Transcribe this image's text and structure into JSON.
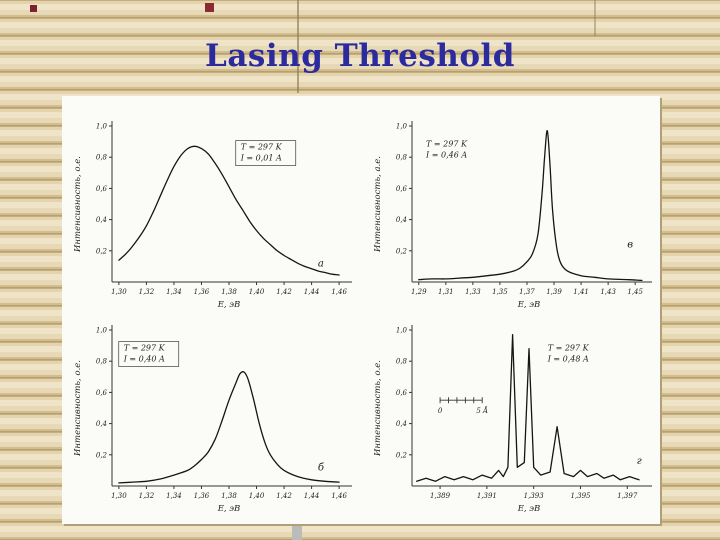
{
  "slide": {
    "title": "Lasing Threshold",
    "title_color": "#2b2b9e"
  },
  "chart_data": [
    {
      "id": "a",
      "type": "line",
      "smooth": true,
      "corner_label": "а",
      "corner_pos": [
        0.88,
        0.9
      ],
      "annotation": [
        "T = 297 K",
        "I = 0,01 A"
      ],
      "annotation_boxed": true,
      "ann_pos": [
        0.55,
        0.1
      ],
      "xlabel": "Е, эВ",
      "ylabel": "Интенсивность, о.е.",
      "xlim": [
        1.295,
        1.465
      ],
      "ylim": [
        0,
        1.0
      ],
      "xticks": {
        "values": [
          1.3,
          1.32,
          1.34,
          1.36,
          1.38,
          1.4,
          1.42,
          1.44,
          1.46
        ],
        "labels": [
          "1,30",
          "1,32",
          "1,34",
          "1,36",
          "1,38",
          "1,40",
          "1,42",
          "1,44",
          "1,46"
        ]
      },
      "yticks": {
        "values": [
          0.2,
          0.4,
          0.6,
          0.8,
          1.0
        ],
        "labels": [
          "0,2",
          "0,4",
          "0,6",
          "0,8",
          "1,0"
        ]
      },
      "points": [
        [
          1.3,
          0.14
        ],
        [
          1.305,
          0.18
        ],
        [
          1.31,
          0.23
        ],
        [
          1.315,
          0.29
        ],
        [
          1.32,
          0.36
        ],
        [
          1.325,
          0.45
        ],
        [
          1.33,
          0.55
        ],
        [
          1.335,
          0.65
        ],
        [
          1.34,
          0.74
        ],
        [
          1.345,
          0.81
        ],
        [
          1.35,
          0.855
        ],
        [
          1.355,
          0.87
        ],
        [
          1.36,
          0.855
        ],
        [
          1.365,
          0.82
        ],
        [
          1.37,
          0.76
        ],
        [
          1.375,
          0.69
        ],
        [
          1.38,
          0.61
        ],
        [
          1.385,
          0.53
        ],
        [
          1.39,
          0.46
        ],
        [
          1.395,
          0.39
        ],
        [
          1.4,
          0.33
        ],
        [
          1.405,
          0.28
        ],
        [
          1.41,
          0.24
        ],
        [
          1.415,
          0.2
        ],
        [
          1.42,
          0.17
        ],
        [
          1.425,
          0.145
        ],
        [
          1.43,
          0.12
        ],
        [
          1.435,
          0.1
        ],
        [
          1.44,
          0.085
        ],
        [
          1.445,
          0.07
        ],
        [
          1.45,
          0.06
        ],
        [
          1.455,
          0.05
        ],
        [
          1.46,
          0.045
        ]
      ]
    },
    {
      "id": "v",
      "type": "line",
      "smooth": true,
      "corner_label": "в",
      "corner_pos": [
        0.92,
        0.78
      ],
      "annotation": [
        "T = 297 K",
        "I = 0,46 A"
      ],
      "annotation_boxed": false,
      "ann_pos": [
        0.06,
        0.08
      ],
      "xlabel": "Е, эВ",
      "ylabel": "Интенсивность, а.е.",
      "xlim": [
        1.285,
        1.458
      ],
      "ylim": [
        0,
        1.0
      ],
      "xticks": {
        "values": [
          1.29,
          1.31,
          1.33,
          1.35,
          1.37,
          1.39,
          1.41,
          1.43,
          1.45
        ],
        "labels": [
          "1,29",
          "1,31",
          "1,33",
          "1,35",
          "1,37",
          "1,39",
          "1,41",
          "1,43",
          "1,45"
        ]
      },
      "yticks": {
        "values": [
          0.2,
          0.4,
          0.6,
          0.8,
          1.0
        ],
        "labels": [
          "0,2",
          "0,4",
          "0,6",
          "0,8",
          "1,0"
        ]
      },
      "points": [
        [
          1.29,
          0.015
        ],
        [
          1.3,
          0.02
        ],
        [
          1.31,
          0.02
        ],
        [
          1.32,
          0.025
        ],
        [
          1.33,
          0.03
        ],
        [
          1.34,
          0.04
        ],
        [
          1.35,
          0.05
        ],
        [
          1.36,
          0.07
        ],
        [
          1.365,
          0.09
        ],
        [
          1.37,
          0.13
        ],
        [
          1.374,
          0.18
        ],
        [
          1.378,
          0.3
        ],
        [
          1.381,
          0.55
        ],
        [
          1.383,
          0.8
        ],
        [
          1.385,
          0.97
        ],
        [
          1.387,
          0.75
        ],
        [
          1.389,
          0.45
        ],
        [
          1.392,
          0.22
        ],
        [
          1.395,
          0.12
        ],
        [
          1.4,
          0.07
        ],
        [
          1.41,
          0.04
        ],
        [
          1.42,
          0.03
        ],
        [
          1.43,
          0.02
        ],
        [
          1.445,
          0.015
        ],
        [
          1.455,
          0.01
        ]
      ]
    },
    {
      "id": "b",
      "type": "line",
      "smooth": true,
      "corner_label": "б",
      "corner_pos": [
        0.88,
        0.9
      ],
      "annotation": [
        "T = 297 K",
        "I = 0,40 A"
      ],
      "annotation_boxed": true,
      "ann_pos": [
        0.05,
        0.08
      ],
      "xlabel": "Е, эВ",
      "ylabel": "Интенсивность, о.е.",
      "xlim": [
        1.295,
        1.465
      ],
      "ylim": [
        0,
        1.0
      ],
      "xticks": {
        "values": [
          1.3,
          1.32,
          1.34,
          1.36,
          1.38,
          1.4,
          1.42,
          1.44,
          1.46
        ],
        "labels": [
          "1,30",
          "1,32",
          "1,34",
          "1,36",
          "1,38",
          "1,40",
          "1,42",
          "1,44",
          "1,46"
        ]
      },
      "yticks": {
        "values": [
          0.2,
          0.4,
          0.6,
          0.8,
          1.0
        ],
        "labels": [
          "0,2",
          "0,4",
          "0,6",
          "0,8",
          "1,0"
        ]
      },
      "points": [
        [
          1.3,
          0.02
        ],
        [
          1.31,
          0.025
        ],
        [
          1.32,
          0.03
        ],
        [
          1.33,
          0.045
        ],
        [
          1.34,
          0.07
        ],
        [
          1.35,
          0.1
        ],
        [
          1.355,
          0.13
        ],
        [
          1.36,
          0.17
        ],
        [
          1.365,
          0.22
        ],
        [
          1.37,
          0.3
        ],
        [
          1.375,
          0.42
        ],
        [
          1.38,
          0.55
        ],
        [
          1.385,
          0.66
        ],
        [
          1.388,
          0.72
        ],
        [
          1.391,
          0.73
        ],
        [
          1.394,
          0.68
        ],
        [
          1.398,
          0.55
        ],
        [
          1.402,
          0.4
        ],
        [
          1.406,
          0.28
        ],
        [
          1.41,
          0.2
        ],
        [
          1.415,
          0.14
        ],
        [
          1.42,
          0.1
        ],
        [
          1.43,
          0.06
        ],
        [
          1.44,
          0.04
        ],
        [
          1.45,
          0.03
        ],
        [
          1.46,
          0.025
        ]
      ]
    },
    {
      "id": "g",
      "type": "line",
      "smooth": false,
      "corner_label": "г",
      "corner_pos": [
        0.96,
        0.86
      ],
      "annotation": [
        "T = 297 K",
        "I = 0,48 A"
      ],
      "annotation_boxed": false,
      "ann_pos": [
        0.58,
        0.08
      ],
      "xlabel": "Е, эВ",
      "ylabel": "Интенсивность, о.е.",
      "xlim": [
        1.3878,
        1.3978
      ],
      "ylim": [
        0,
        1.0
      ],
      "xticks": {
        "values": [
          1.389,
          1.391,
          1.393,
          1.395,
          1.397
        ],
        "labels": [
          "1,389",
          "1,391",
          "1,393",
          "1,395",
          "1,397"
        ]
      },
      "yticks": {
        "values": [
          0.2,
          0.4,
          0.6,
          0.8,
          1.0
        ],
        "labels": [
          "0,2",
          "0,4",
          "0,6",
          "0,8",
          "1,0"
        ]
      },
      "scalebar": {
        "start_label": "0",
        "end_label": "5 Å"
      },
      "points": [
        [
          1.388,
          0.03
        ],
        [
          1.3884,
          0.05
        ],
        [
          1.3888,
          0.03
        ],
        [
          1.3892,
          0.06
        ],
        [
          1.3896,
          0.04
        ],
        [
          1.39,
          0.06
        ],
        [
          1.3904,
          0.04
        ],
        [
          1.3908,
          0.07
        ],
        [
          1.3912,
          0.05
        ],
        [
          1.3915,
          0.1
        ],
        [
          1.3917,
          0.06
        ],
        [
          1.3919,
          0.12
        ],
        [
          1.3921,
          0.97
        ],
        [
          1.3923,
          0.12
        ],
        [
          1.3926,
          0.15
        ],
        [
          1.3928,
          0.88
        ],
        [
          1.393,
          0.12
        ],
        [
          1.3933,
          0.07
        ],
        [
          1.3937,
          0.09
        ],
        [
          1.394,
          0.38
        ],
        [
          1.3943,
          0.08
        ],
        [
          1.3947,
          0.06
        ],
        [
          1.395,
          0.1
        ],
        [
          1.3953,
          0.06
        ],
        [
          1.3957,
          0.08
        ],
        [
          1.396,
          0.05
        ],
        [
          1.3964,
          0.07
        ],
        [
          1.3967,
          0.04
        ],
        [
          1.3971,
          0.06
        ],
        [
          1.3975,
          0.04
        ]
      ]
    }
  ]
}
